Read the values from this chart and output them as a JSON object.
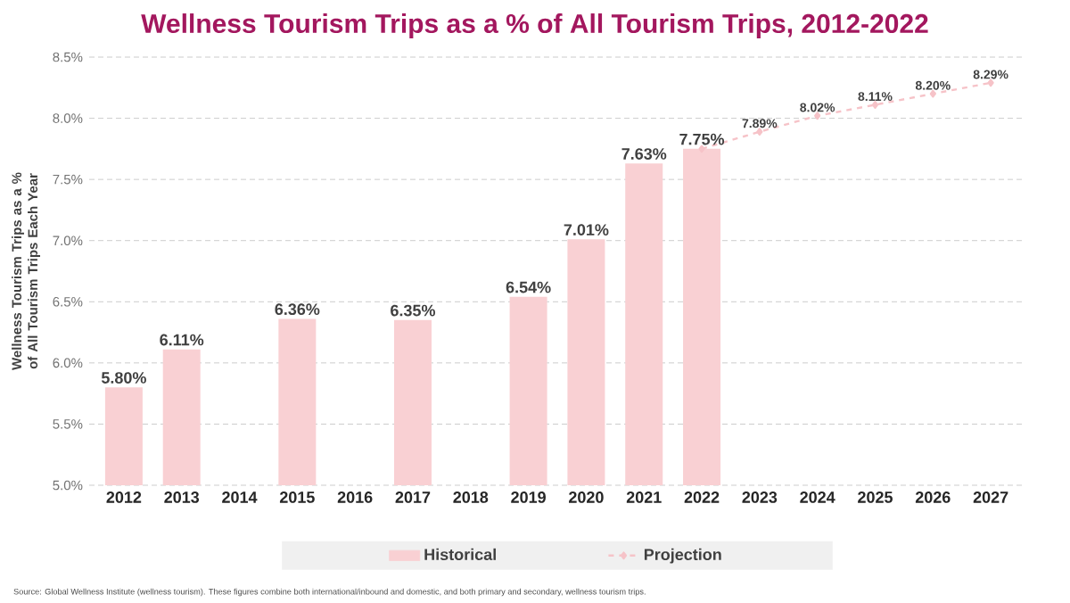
{
  "chart_data": {
    "type": "bar",
    "title": "Wellness Tourism Trips as a % of All Tourism Trips, 2012-2022",
    "ylabel": "Wellness Tourism Trips as a % of All Tourism Trips Each Year",
    "categories": [
      "2012",
      "2013",
      "2014",
      "2015",
      "2016",
      "2017",
      "2018",
      "2019",
      "2020",
      "2021",
      "2022",
      "2023",
      "2024",
      "2025",
      "2026",
      "2027"
    ],
    "series": [
      {
        "name": "Historical",
        "color": "#f9d0d3",
        "values": [
          5.8,
          6.11,
          null,
          6.36,
          null,
          6.35,
          null,
          6.54,
          7.01,
          7.63,
          7.75,
          null,
          null,
          null,
          null,
          null
        ],
        "value_labels": [
          "5.80%",
          "6.11%",
          null,
          "6.36%",
          null,
          "6.35%",
          null,
          "6.54%",
          "7.01%",
          "7.63%",
          "7.75%",
          null,
          null,
          null,
          null,
          null
        ]
      },
      {
        "name": "Projection",
        "type": "line",
        "color": "#f6c3c8",
        "line_style": "dashed",
        "marker": "diamond",
        "values": [
          null,
          null,
          null,
          null,
          null,
          null,
          null,
          null,
          null,
          null,
          7.75,
          7.89,
          8.02,
          8.11,
          8.2,
          8.29
        ],
        "value_labels": [
          null,
          null,
          null,
          null,
          null,
          null,
          null,
          null,
          null,
          null,
          null,
          "7.89%",
          "8.02%",
          "8.11%",
          "8.20%",
          "8.29%"
        ]
      }
    ],
    "ylim": [
      5.0,
      8.5
    ],
    "yticks": [
      {
        "value": 5.0,
        "label": "5.0%"
      },
      {
        "value": 5.5,
        "label": "5.5%"
      },
      {
        "value": 6.0,
        "label": "6.0%"
      },
      {
        "value": 6.5,
        "label": "6.5%"
      },
      {
        "value": 7.0,
        "label": "7.0%"
      },
      {
        "value": 7.5,
        "label": "7.5%"
      },
      {
        "value": 8.0,
        "label": "8.0%"
      },
      {
        "value": 8.5,
        "label": "8.5%"
      }
    ],
    "grid": "y",
    "legend": "bottom",
    "annotations": [
      "Source: Global Wellness Institute (wellness tourism). These figures combine both international/inbound and domestic, and both primary and secondary, wellness tourism trips."
    ]
  }
}
